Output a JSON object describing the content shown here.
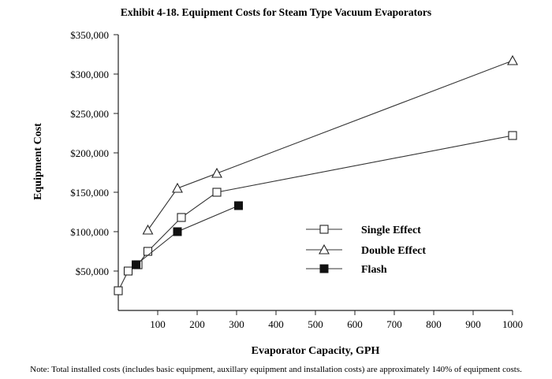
{
  "chart_data": {
    "type": "line",
    "title": "Exhibit 4-18. Equipment Costs for Steam Type Vacuum Evaporators",
    "xlabel": "Evaporator Capacity, GPH",
    "ylabel": "Equipment Cost",
    "xlim": [
      0,
      1000
    ],
    "ylim": [
      0,
      350000
    ],
    "x_ticks": [
      100,
      200,
      300,
      400,
      500,
      600,
      700,
      800,
      900,
      1000
    ],
    "x_tick_labels": [
      "100",
      "200",
      "300",
      "400",
      "500",
      "600",
      "700",
      "800",
      "900",
      "1000"
    ],
    "y_ticks": [
      50000,
      100000,
      150000,
      200000,
      250000,
      300000,
      350000
    ],
    "y_tick_labels": [
      "$50,000",
      "$100,000",
      "$150,000",
      "$200,000",
      "$250,000",
      "$300,000",
      "$350,000"
    ],
    "grid": false,
    "legend_position": "right-middle",
    "series": [
      {
        "name": "Single Effect",
        "marker": "open-square",
        "points": [
          {
            "x": 0,
            "y": 25000
          },
          {
            "x": 25,
            "y": 50000
          },
          {
            "x": 50,
            "y": 58000
          },
          {
            "x": 75,
            "y": 75000
          },
          {
            "x": 160,
            "y": 118000
          },
          {
            "x": 250,
            "y": 150000
          },
          {
            "x": 1000,
            "y": 222000
          }
        ]
      },
      {
        "name": "Double Effect",
        "marker": "open-triangle",
        "points": [
          {
            "x": 75,
            "y": 102000
          },
          {
            "x": 150,
            "y": 155000
          },
          {
            "x": 250,
            "y": 174000
          },
          {
            "x": 1000,
            "y": 317000
          }
        ]
      },
      {
        "name": "Flash",
        "marker": "filled-square",
        "points": [
          {
            "x": 45,
            "y": 58000
          },
          {
            "x": 150,
            "y": 100000
          },
          {
            "x": 305,
            "y": 133000
          }
        ]
      }
    ]
  },
  "note": "Note: Total installed costs (includes basic equipment, auxillary equipment and installation costs) are approximately 140% of equipment costs."
}
